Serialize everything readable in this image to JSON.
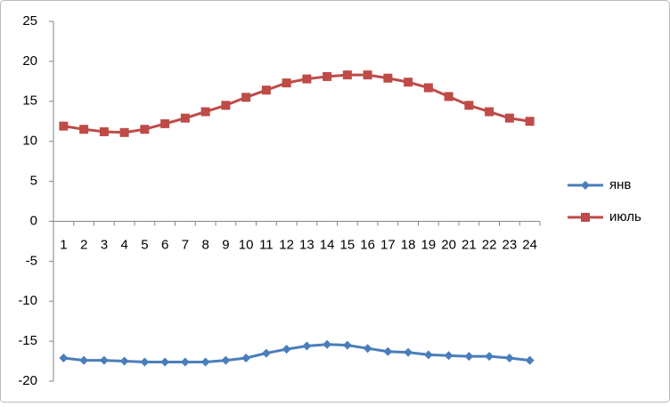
{
  "chart_data": {
    "type": "line",
    "categories": [
      "1",
      "2",
      "3",
      "4",
      "5",
      "6",
      "7",
      "8",
      "9",
      "10",
      "11",
      "12",
      "13",
      "14",
      "15",
      "16",
      "17",
      "18",
      "19",
      "20",
      "21",
      "22",
      "23",
      "24"
    ],
    "series": [
      {
        "name": "янв",
        "color": "#4a7ebb",
        "marker": "diamond",
        "values": [
          -17.1,
          -17.4,
          -17.4,
          -17.5,
          -17.6,
          -17.6,
          -17.6,
          -17.6,
          -17.4,
          -17.1,
          -16.5,
          -16.0,
          -15.6,
          -15.4,
          -15.5,
          -15.9,
          -16.3,
          -16.4,
          -16.7,
          -16.8,
          -16.9,
          -16.9,
          -17.1,
          -17.4
        ]
      },
      {
        "name": "июль",
        "color": "#be4b48",
        "marker": "square",
        "values": [
          11.9,
          11.5,
          11.2,
          11.1,
          11.5,
          12.2,
          12.9,
          13.7,
          14.5,
          15.5,
          16.4,
          17.3,
          17.8,
          18.1,
          18.3,
          18.3,
          17.9,
          17.4,
          16.7,
          15.6,
          14.5,
          13.7,
          12.9,
          12.5
        ]
      }
    ],
    "ylim": [
      -20,
      25
    ],
    "yticks": [
      -20,
      -15,
      -10,
      -5,
      0,
      5,
      10,
      15,
      20,
      25
    ],
    "grid": false,
    "legend": "right"
  }
}
